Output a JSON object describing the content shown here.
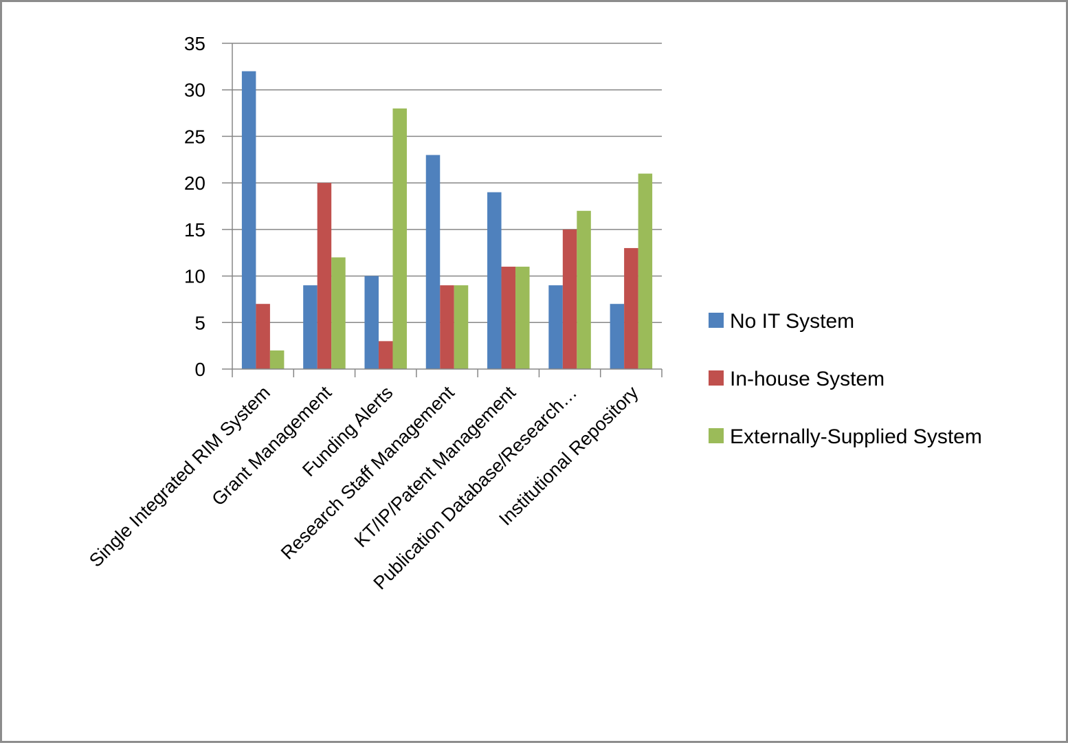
{
  "chart_data": {
    "type": "bar",
    "title": "",
    "xlabel": "",
    "ylabel": "",
    "categories": [
      "Single Integrated  RIM System",
      "Grant Management",
      "Funding Alerts",
      "Research Staff Management",
      "KT/IP/Patent Management",
      "Publication Database/Research…",
      "Institutional Repository"
    ],
    "series": [
      {
        "name": "No IT System",
        "color": "#4f81bd",
        "values": [
          32,
          9,
          10,
          23,
          19,
          9,
          7
        ]
      },
      {
        "name": "In-house System",
        "color": "#c0504d",
        "values": [
          7,
          20,
          3,
          9,
          11,
          15,
          13
        ]
      },
      {
        "name": "Externally-Supplied System",
        "color": "#9bbb59",
        "values": [
          2,
          12,
          28,
          9,
          11,
          17,
          21
        ]
      }
    ],
    "ylim": [
      0,
      35
    ],
    "yticks": [
      "0",
      "5",
      "10",
      "15",
      "20",
      "25",
      "30",
      "35"
    ],
    "grid": true,
    "legend_position": "right"
  }
}
